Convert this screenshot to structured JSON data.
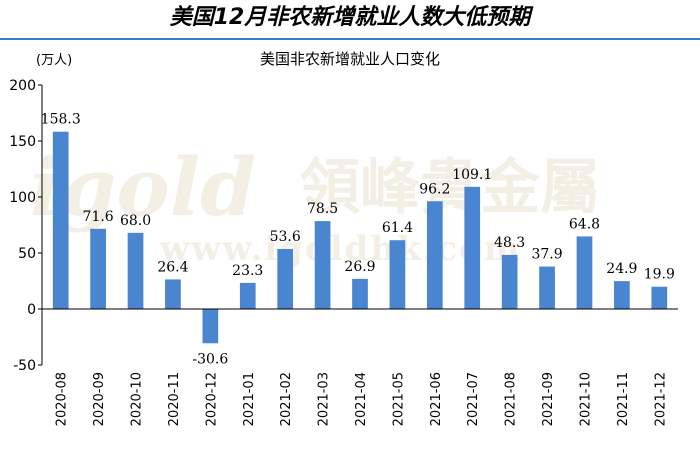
{
  "header": {
    "title": "美国12月非农新增就业人数大低预期"
  },
  "chart_data": {
    "type": "bar",
    "title": "美国非农新增就业人口变化",
    "ylabel": "(万人)",
    "ylim": [
      -50,
      200
    ],
    "yticks": [
      -50,
      0,
      50,
      100,
      150,
      200
    ],
    "categories": [
      "2020-08",
      "2020-09",
      "2020-10",
      "2020-11",
      "2020-12",
      "2021-01",
      "2021-02",
      "2021-03",
      "2021-04",
      "2021-05",
      "2021-06",
      "2021-07",
      "2021-08",
      "2021-09",
      "2021-10",
      "2021-11",
      "2021-12"
    ],
    "values": [
      158.3,
      71.6,
      68.0,
      26.4,
      -30.6,
      23.3,
      53.6,
      78.5,
      26.9,
      61.4,
      96.2,
      109.1,
      48.3,
      37.9,
      64.8,
      24.9,
      19.9
    ],
    "value_labels": [
      "158.3",
      "71.6",
      "68.0",
      "26.4",
      "-30.6",
      "23.3",
      "53.6",
      "78.5",
      "26.9",
      "61.4",
      "96.2",
      "109.1",
      "48.3",
      "37.9",
      "64.8",
      "24.9",
      "19.9"
    ],
    "bar_color": "#4a86d0",
    "grid": false,
    "legend": "none"
  },
  "watermark": {
    "logo": "igold",
    "chinese": "領峰貴金屬",
    "url": "www.igoldhk.com"
  }
}
